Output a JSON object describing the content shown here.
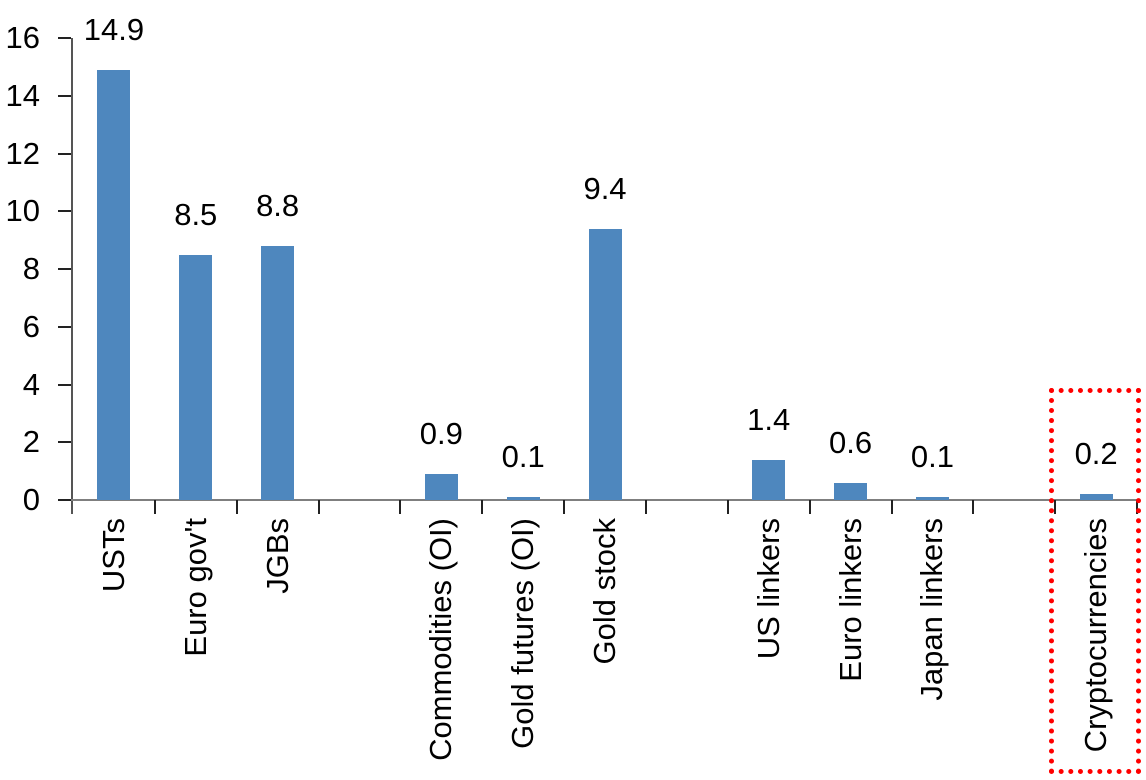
{
  "chart_data": {
    "type": "bar",
    "title": "",
    "xlabel": "",
    "ylabel": "",
    "categories": [
      "USTs",
      "Euro gov't",
      "JGBs",
      "Commodities (OI)",
      "Gold futures (OI)",
      "Gold stock",
      "US linkers",
      "Euro linkers",
      "Japan linkers",
      "Cryptocurrencies"
    ],
    "values": [
      14.9,
      8.5,
      8.8,
      0.9,
      0.1,
      9.4,
      1.4,
      0.6,
      0.1,
      0.2
    ],
    "data_labels": [
      "14.9",
      "8.5",
      "8.8",
      "0.9",
      "0.1",
      "9.4",
      "1.4",
      "0.6",
      "0.1",
      "0.2"
    ],
    "groups": [
      [
        0,
        1,
        2
      ],
      [
        3,
        4,
        5
      ],
      [
        6,
        7,
        8
      ],
      [
        9
      ]
    ],
    "y_axis": {
      "min": 0,
      "max": 16,
      "tick_interval": 2,
      "tick_labels": [
        "0",
        "2",
        "4",
        "6",
        "8",
        "10",
        "12",
        "14",
        "16"
      ]
    },
    "grid": false,
    "legend": false,
    "colors": {
      "bar": "#4e87be",
      "y_axis_line": "#555555",
      "x_axis_line": "#7f7f7f",
      "tick": "#222222",
      "text": "#000000",
      "highlight_box": "#ff0000"
    },
    "highlight": {
      "category": "Cryptocurrencies",
      "style": "dotted-box",
      "color": "#ff0000"
    }
  }
}
